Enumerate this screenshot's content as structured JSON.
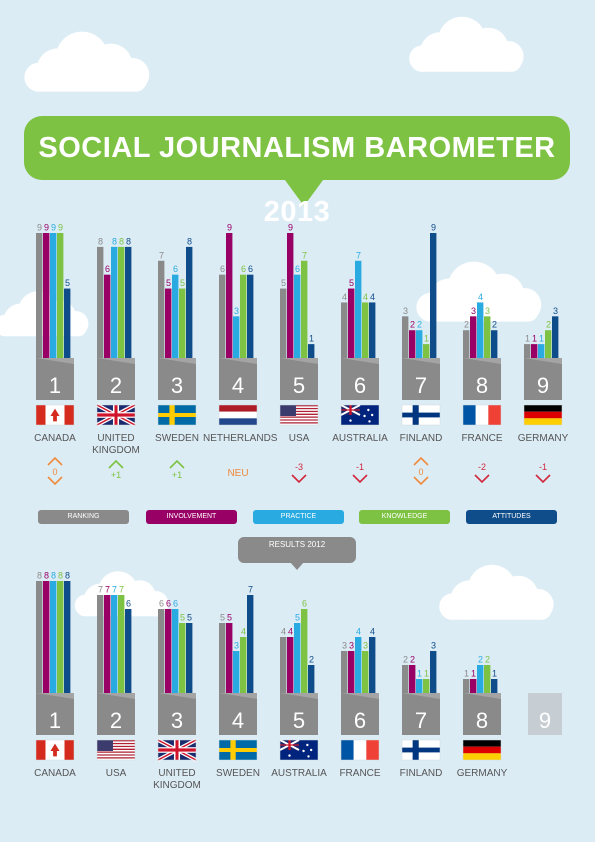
{
  "title": "SOCIAL JOURNALISM BAROMETER 2013",
  "results_label": "RESULTS 2012",
  "colors": {
    "ranking": "#8a8a8a",
    "involvement": "#990066",
    "practice": "#29abe2",
    "knowledge": "#7dc242",
    "attitudes": "#0f4c8a",
    "up": "#7dc242",
    "down": "#d0283c",
    "same": "#f08a3c"
  },
  "legend": [
    {
      "key": "ranking",
      "label": "RANKING"
    },
    {
      "key": "involvement",
      "label": "INVOLVEMENT"
    },
    {
      "key": "practice",
      "label": "PRACTICE"
    },
    {
      "key": "knowledge",
      "label": "KNOWLEDGE"
    },
    {
      "key": "attitudes",
      "label": "ATTITUDES"
    }
  ],
  "chart_data": [
    {
      "type": "bar",
      "title": "SOCIAL JOURNALISM BAROMETER 2013",
      "categories": [
        "CANADA",
        "UNITED KINGDOM",
        "SWEDEN",
        "NETHERLANDS",
        "USA",
        "AUSTRALIA",
        "FINLAND",
        "FRANCE",
        "GERMANY"
      ],
      "rank_labels": [
        "1",
        "2",
        "3",
        "4",
        "5",
        "6",
        "7",
        "8",
        "9"
      ],
      "flags": [
        "canada",
        "uk",
        "sweden",
        "netherlands",
        "usa",
        "australia",
        "finland",
        "france",
        "germany"
      ],
      "series": [
        {
          "name": "RANKING",
          "values": [
            9,
            8,
            7,
            6,
            5,
            4,
            3,
            2,
            1
          ]
        },
        {
          "name": "INVOLVEMENT",
          "values": [
            9,
            6,
            5,
            9,
            9,
            5,
            2,
            3,
            1
          ]
        },
        {
          "name": "PRACTICE",
          "values": [
            9,
            8,
            6,
            3,
            6,
            7,
            2,
            4,
            1
          ]
        },
        {
          "name": "KNOWLEDGE",
          "values": [
            9,
            8,
            5,
            6,
            7,
            4,
            1,
            3,
            2
          ]
        },
        {
          "name": "ATTITUDES",
          "values": [
            5,
            8,
            8,
            6,
            1,
            4,
            9,
            2,
            3
          ]
        }
      ],
      "changes": [
        {
          "symbol": "same",
          "text": "0"
        },
        {
          "symbol": "up",
          "text": "+1"
        },
        {
          "symbol": "up",
          "text": "+1"
        },
        {
          "symbol": "new",
          "text": "NEU"
        },
        {
          "symbol": "down",
          "text": "-3"
        },
        {
          "symbol": "down",
          "text": "-1"
        },
        {
          "symbol": "same",
          "text": "0"
        },
        {
          "symbol": "down",
          "text": "-2"
        },
        {
          "symbol": "down",
          "text": "-1"
        }
      ],
      "ylim": [
        0,
        9
      ]
    },
    {
      "type": "bar",
      "title": "RESULTS 2012",
      "categories": [
        "CANADA",
        "USA",
        "UNITED KINGDOM",
        "SWEDEN",
        "AUSTRALIA",
        "FRANCE",
        "FINLAND",
        "GERMANY"
      ],
      "rank_labels": [
        "1",
        "2",
        "3",
        "4",
        "5",
        "6",
        "7",
        "8"
      ],
      "flags": [
        "canada",
        "usa",
        "uk",
        "sweden",
        "australia",
        "france",
        "finland",
        "germany"
      ],
      "series": [
        {
          "name": "RANKING",
          "values": [
            8,
            7,
            6,
            5,
            4,
            3,
            2,
            1
          ]
        },
        {
          "name": "INVOLVEMENT",
          "values": [
            8,
            7,
            6,
            5,
            4,
            3,
            2,
            1
          ]
        },
        {
          "name": "PRACTICE",
          "values": [
            8,
            7,
            6,
            3,
            5,
            4,
            1,
            2
          ]
        },
        {
          "name": "KNOWLEDGE",
          "values": [
            8,
            7,
            5,
            4,
            6,
            3,
            1,
            2
          ]
        },
        {
          "name": "ATTITUDES",
          "values": [
            8,
            6,
            5,
            7,
            2,
            4,
            3,
            1
          ]
        }
      ],
      "extra_rank": "9",
      "ylim": [
        0,
        8
      ]
    }
  ]
}
